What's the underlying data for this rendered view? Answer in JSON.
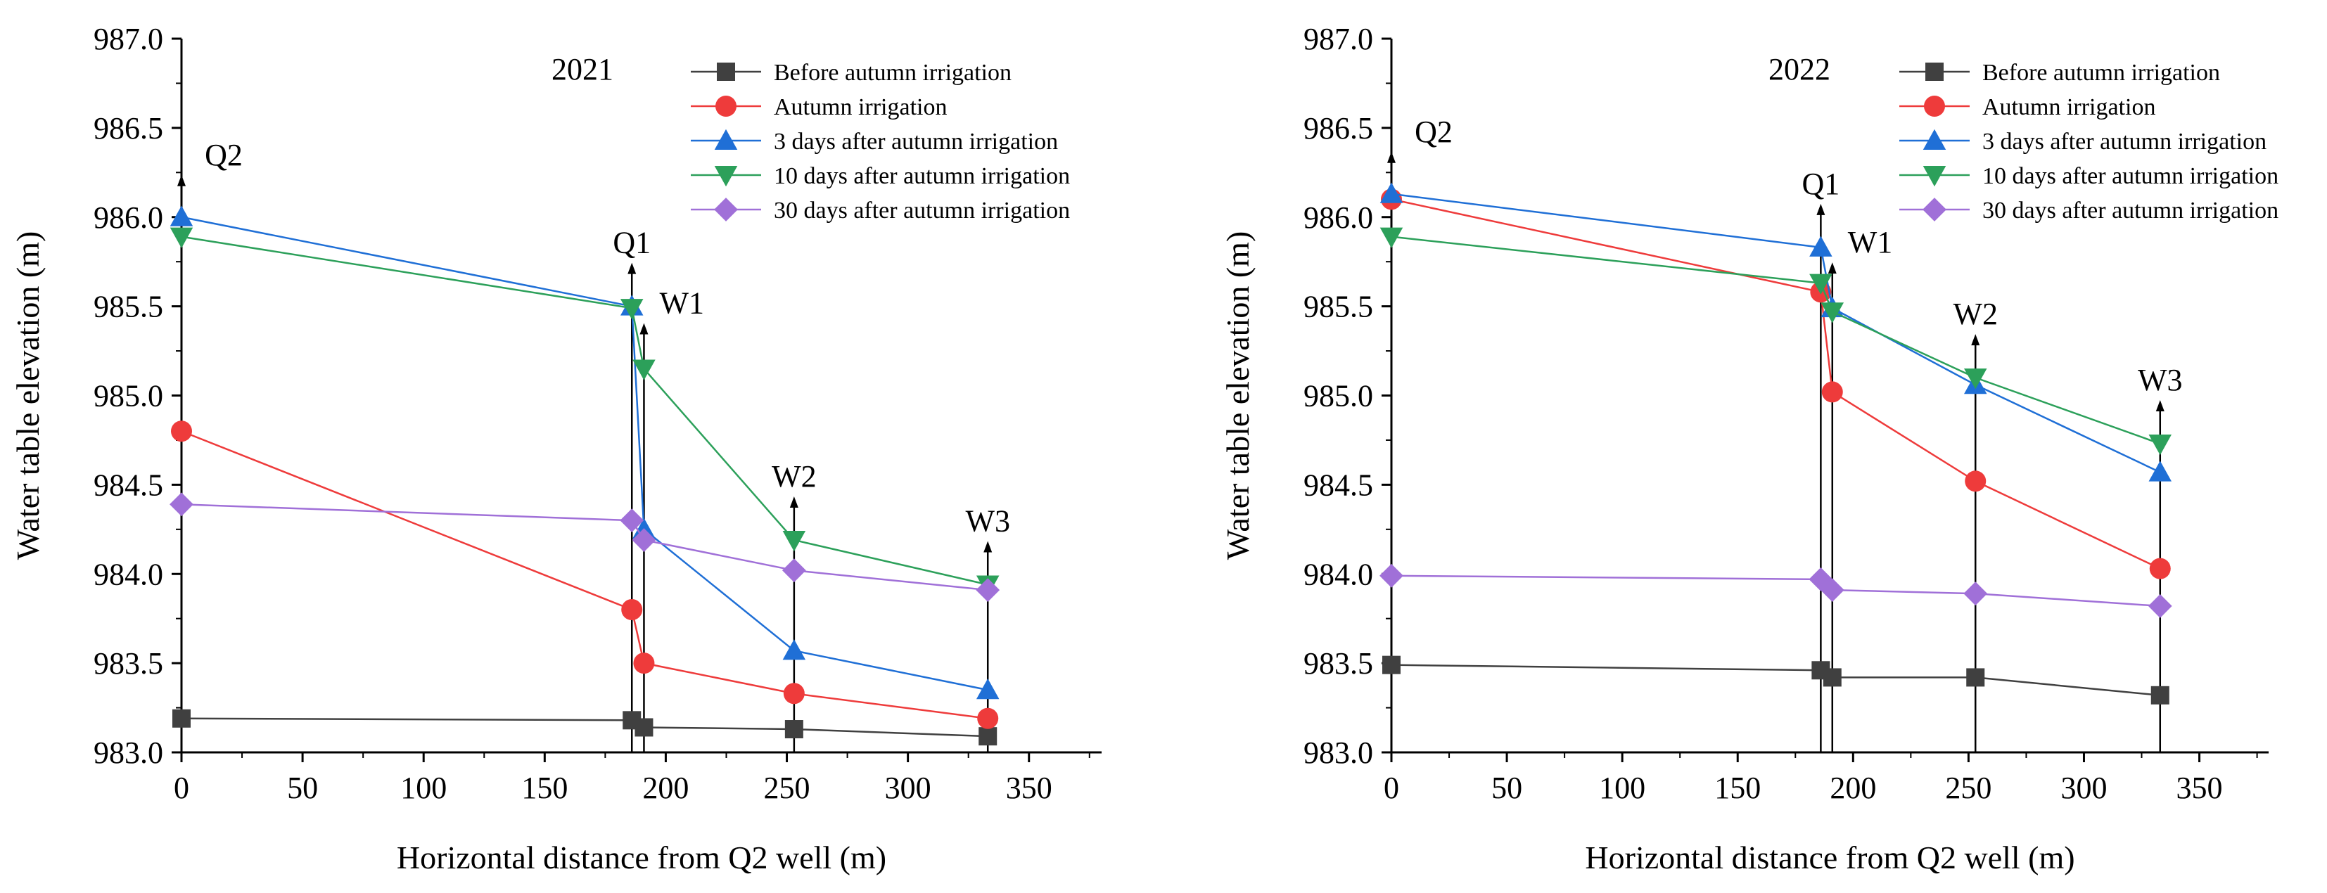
{
  "chart_data": [
    {
      "type": "line",
      "title": "2021",
      "xlabel": "Horizontal distance from Q2 well (m)",
      "ylabel": "Water table elevation (m)",
      "xlim": [
        0,
        380
      ],
      "ylim": [
        983.0,
        987.0
      ],
      "xticks": [
        0,
        50,
        100,
        150,
        200,
        250,
        300,
        350
      ],
      "yticks": [
        "983.0",
        "983.5",
        "984.0",
        "984.5",
        "985.0",
        "985.5",
        "986.0",
        "986.5",
        "987.0"
      ],
      "grid": false,
      "legend_position": "top-right",
      "x": [
        0,
        186,
        191,
        253,
        333
      ],
      "wells": [
        {
          "label": "Q2",
          "x": 0
        },
        {
          "label": "Q1",
          "x": 186
        },
        {
          "label": "W1",
          "x": 191
        },
        {
          "label": "W2",
          "x": 253
        },
        {
          "label": "W3",
          "x": 333
        }
      ],
      "series": [
        {
          "name": "Before autumn irrigation",
          "marker": "square",
          "color": "#404040",
          "values": [
            983.19,
            983.18,
            983.14,
            983.13,
            983.09
          ]
        },
        {
          "name": "Autumn irrigation",
          "marker": "circle",
          "color": "#ee3b3b",
          "values": [
            984.8,
            983.8,
            983.5,
            983.33,
            983.19
          ]
        },
        {
          "name": "3 days after autumn irrigation",
          "marker": "triangle-up",
          "color": "#1f6fd6",
          "values": [
            986.0,
            985.5,
            984.25,
            983.57,
            983.35
          ]
        },
        {
          "name": "10 days after autumn irrigation",
          "marker": "triangle-down",
          "color": "#2ca05a",
          "values": [
            985.89,
            985.49,
            985.15,
            984.19,
            983.94
          ]
        },
        {
          "name": "30 days after autumn irrigation",
          "marker": "diamond",
          "color": "#a070d8",
          "values": [
            984.39,
            984.3,
            984.19,
            984.02,
            983.91
          ]
        }
      ]
    },
    {
      "type": "line",
      "title": "2022",
      "xlabel": "Horizontal distance from Q2 well (m)",
      "ylabel": "Water table elevation (m)",
      "xlim": [
        0,
        380
      ],
      "ylim": [
        983.0,
        987.0
      ],
      "xticks": [
        0,
        50,
        100,
        150,
        200,
        250,
        300,
        350
      ],
      "yticks": [
        "983.0",
        "983.5",
        "984.0",
        "984.5",
        "985.0",
        "985.5",
        "986.0",
        "986.5",
        "987.0"
      ],
      "grid": false,
      "legend_position": "top-right",
      "x": [
        0,
        186,
        191,
        253,
        333
      ],
      "wells": [
        {
          "label": "Q2",
          "x": 0
        },
        {
          "label": "Q1",
          "x": 186
        },
        {
          "label": "W1",
          "x": 191
        },
        {
          "label": "W2",
          "x": 253
        },
        {
          "label": "W3",
          "x": 333
        }
      ],
      "series": [
        {
          "name": "Before autumn irrigation",
          "marker": "square",
          "color": "#404040",
          "values": [
            983.49,
            983.46,
            983.42,
            983.42,
            983.32
          ]
        },
        {
          "name": "Autumn irrigation",
          "marker": "circle",
          "color": "#ee3b3b",
          "values": [
            986.1,
            985.58,
            985.02,
            984.52,
            984.03
          ]
        },
        {
          "name": "3 days after autumn irrigation",
          "marker": "triangle-up",
          "color": "#1f6fd6",
          "values": [
            986.13,
            985.83,
            985.49,
            985.06,
            984.57
          ]
        },
        {
          "name": "10 days after autumn irrigation",
          "marker": "triangle-down",
          "color": "#2ca05a",
          "values": [
            985.89,
            985.63,
            985.47,
            985.1,
            984.73
          ]
        },
        {
          "name": "30 days after autumn irrigation",
          "marker": "diamond",
          "color": "#a070d8",
          "values": [
            983.99,
            983.97,
            983.91,
            983.89,
            983.82
          ]
        }
      ]
    }
  ]
}
